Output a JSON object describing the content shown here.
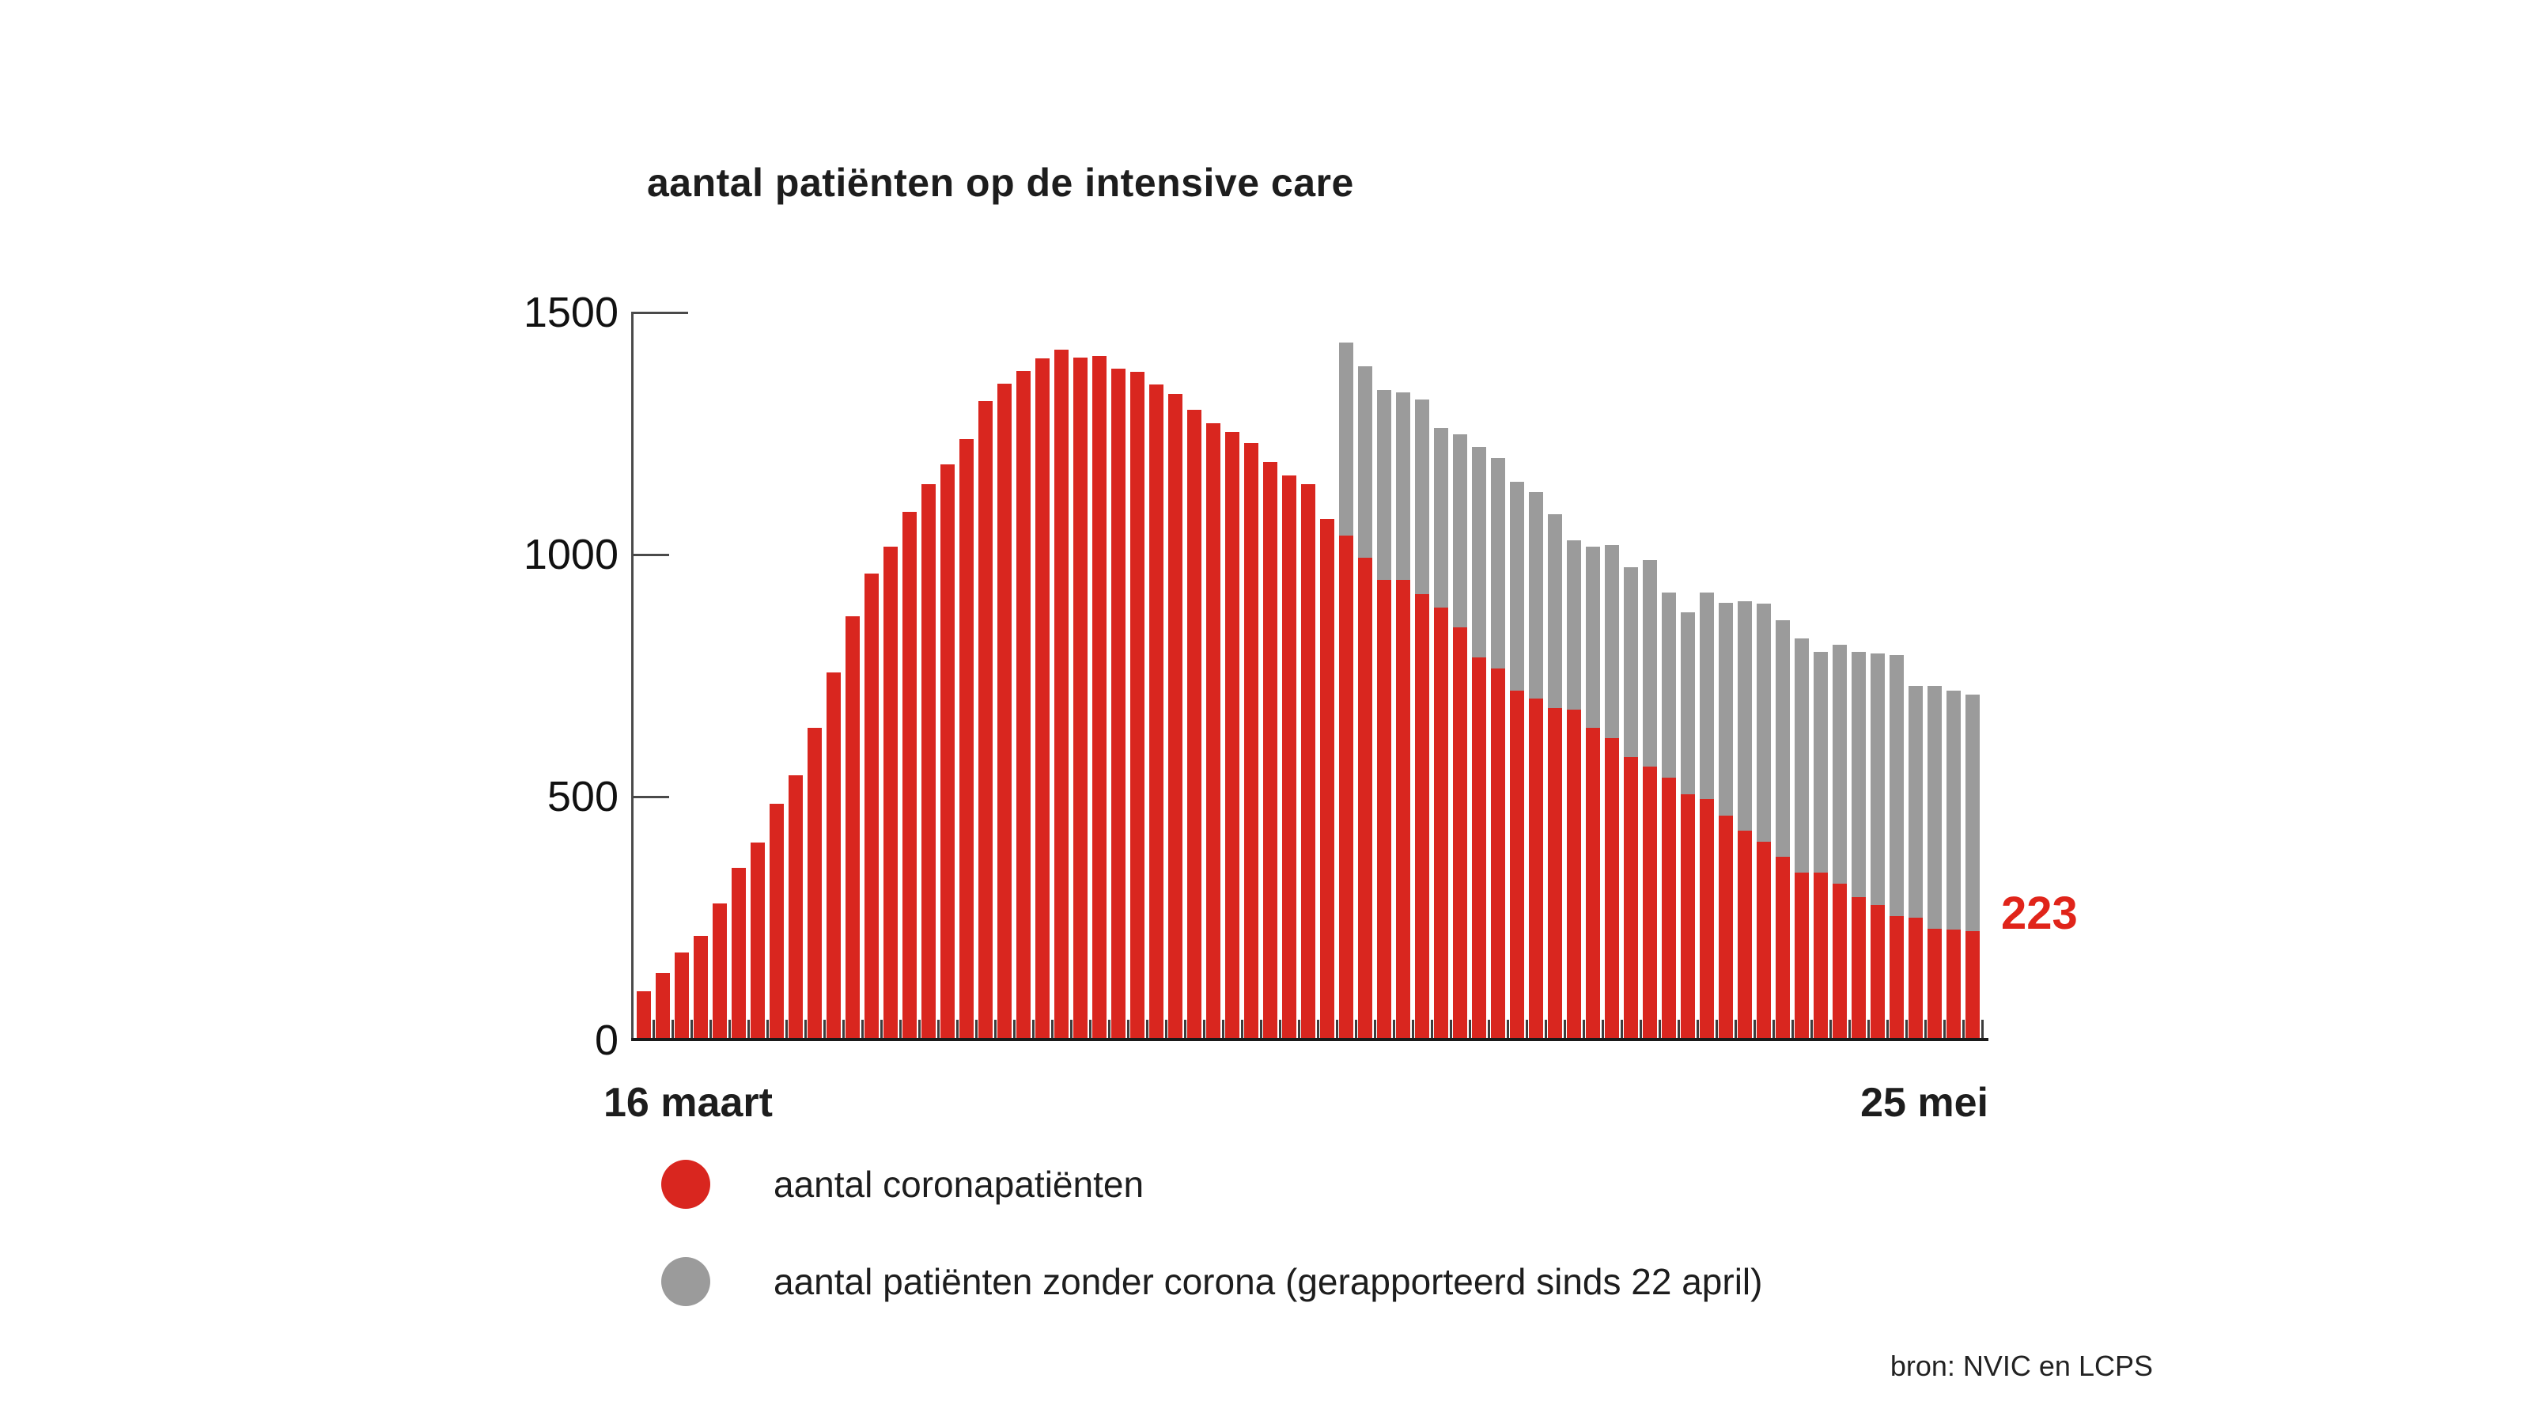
{
  "title": "aantal patiënten op de intensive care",
  "annotation": {
    "last_value": "223"
  },
  "x_axis": {
    "start_label": "16 maart",
    "end_label": "25 mei"
  },
  "y_axis": {
    "tick_labels": [
      "0",
      "500",
      "1000",
      "1500"
    ]
  },
  "legend": [
    {
      "label": "aantal coronapatiënten",
      "color": "#d9261f"
    },
    {
      "label": "aantal patiënten zonder corona (gerapporteerd sinds 22 april)",
      "color": "#9b9b9b"
    }
  ],
  "source": "bron: NVIC en LCPS",
  "colors": {
    "corona_red": "#d9261f",
    "non_corona_gray": "#9b9b9b",
    "annotation_red": "#e0241a",
    "axis_dark": "#1a1a1a",
    "axis_gray": "#4a4a4a",
    "tick_gray": "#3c3c3c",
    "text_dark": "#1d1d1d"
  },
  "chart_data": {
    "type": "bar",
    "stacked": true,
    "title": "aantal patiënten op de intensive care",
    "x_start_label": "16 maart",
    "x_end_label": "25 mei",
    "n_bars": 71,
    "ylim": [
      0,
      1500
    ],
    "yticks": [
      0,
      500,
      1000,
      1500
    ],
    "grid": false,
    "legend_position": "bottom",
    "last_bar_value_label": "223",
    "series": [
      {
        "name": "aantal coronapatiënten",
        "color": "#d9261f",
        "values": [
          98,
          136,
          179,
          212,
          280,
          354,
          405,
          485,
          545,
          643,
          758,
          873,
          961,
          1018,
          1090,
          1147,
          1187,
          1240,
          1319,
          1355,
          1381,
          1406,
          1424,
          1408,
          1412,
          1385,
          1378,
          1352,
          1333,
          1301,
          1273,
          1254,
          1231,
          1193,
          1164,
          1147,
          1075,
          1041,
          995,
          949,
          948,
          920,
          891,
          850,
          789,
          765,
          719,
          704,
          684,
          680,
          642,
          622,
          582,
          563,
          539,
          506,
          496,
          462,
          430,
          408,
          377,
          344,
          343,
          321,
          292,
          277,
          254,
          251,
          228,
          225,
          223
        ]
      },
      {
        "name": "aantal patiënten zonder corona (gerapporteerd sinds 22 april)",
        "color": "#9b9b9b",
        "start_index": 37,
        "stacked_totals": [
          1440,
          1390,
          1342,
          1337,
          1322,
          1263,
          1249,
          1223,
          1201,
          1152,
          1130,
          1085,
          1031,
          1018,
          1020,
          974,
          989,
          922,
          882,
          922,
          902,
          905,
          900,
          866,
          828,
          799,
          814,
          800,
          797,
          794,
          730,
          729,
          719,
          712
        ]
      }
    ]
  }
}
